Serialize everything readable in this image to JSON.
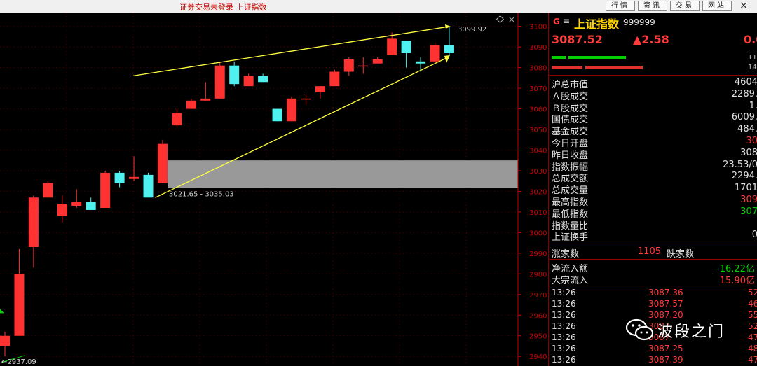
{
  "topbar": {
    "title": "证券交易未登录  上证指数",
    "buttons": [
      "行情",
      "资讯",
      "交易",
      "网站"
    ],
    "close": "×"
  },
  "chart": {
    "y_axis_labels": [
      "3100",
      "3090",
      "3080",
      "3070",
      "3060",
      "3050",
      "3040",
      "3030",
      "3020",
      "3010",
      "3000",
      "2990",
      "2980",
      "2970",
      "2960",
      "2950",
      "2940"
    ],
    "high_label": "3099.92",
    "zone_label": "3021.65 - 3035.03",
    "low_label": "←2937.09",
    "colors": {
      "up": "#ff3232",
      "down": "#4ff0f0",
      "trend": "#ffff40",
      "zone": "#999999",
      "axis": "#c80000"
    }
  },
  "chart_data": {
    "type": "candlestick",
    "ylim": [
      2936,
      3106
    ],
    "support_zone": [
      3021.65,
      3035.03
    ],
    "high": 3099.92,
    "low": 2937.09,
    "candles": [
      {
        "o": 2945,
        "c": 2950,
        "h": 2952,
        "l": 2940
      },
      {
        "o": 2950,
        "c": 2980,
        "h": 2992,
        "l": 2950
      },
      {
        "o": 2993,
        "c": 3017,
        "h": 3018,
        "l": 2983
      },
      {
        "o": 3017,
        "c": 3024,
        "h": 3025,
        "l": 3017
      },
      {
        "o": 3008,
        "c": 3014,
        "h": 3018,
        "l": 3005
      },
      {
        "o": 3013,
        "c": 3015,
        "h": 3021,
        "l": 3012
      },
      {
        "o": 3015,
        "c": 3011,
        "h": 3017,
        "l": 3011
      },
      {
        "o": 3012,
        "c": 3029,
        "h": 3030,
        "l": 3012
      },
      {
        "o": 3029,
        "c": 3024,
        "h": 3030,
        "l": 3022
      },
      {
        "o": 3026,
        "c": 3027,
        "h": 3037,
        "l": 3025
      },
      {
        "o": 3028,
        "c": 3017,
        "h": 3029,
        "l": 3017
      },
      {
        "o": 3024,
        "c": 3043,
        "h": 3045,
        "l": 3024
      },
      {
        "o": 3052,
        "c": 3058,
        "h": 3060,
        "l": 3051
      },
      {
        "o": 3060,
        "c": 3064,
        "h": 3065,
        "l": 3060
      },
      {
        "o": 3064,
        "c": 3065,
        "h": 3073,
        "l": 3064
      },
      {
        "o": 3065,
        "c": 3081,
        "h": 3083,
        "l": 3065
      },
      {
        "o": 3081,
        "c": 3072,
        "h": 3083,
        "l": 3071
      },
      {
        "o": 3071,
        "c": 3076,
        "h": 3077,
        "l": 3071
      },
      {
        "o": 3076,
        "c": 3073,
        "h": 3077,
        "l": 3073
      },
      {
        "o": 3060,
        "c": 3054,
        "h": 3060,
        "l": 3054
      },
      {
        "o": 3054,
        "c": 3065,
        "h": 3066,
        "l": 3054
      },
      {
        "o": 3065,
        "c": 3065,
        "h": 3067,
        "l": 3062
      },
      {
        "o": 3068,
        "c": 3071,
        "h": 3071,
        "l": 3065
      },
      {
        "o": 3071,
        "c": 3078,
        "h": 3079,
        "l": 3071
      },
      {
        "o": 3078,
        "c": 3084,
        "h": 3085,
        "l": 3076
      },
      {
        "o": 3081,
        "c": 3081,
        "h": 3085,
        "l": 3077
      },
      {
        "o": 3082,
        "c": 3084,
        "h": 3085,
        "l": 3082
      },
      {
        "o": 3086,
        "c": 3094,
        "h": 3097,
        "l": 3086
      },
      {
        "o": 3093,
        "c": 3087,
        "h": 3093,
        "l": 3080
      },
      {
        "o": 3083,
        "c": 3082,
        "h": 3085,
        "l": 3078
      },
      {
        "o": 3083,
        "c": 3091,
        "h": 3092,
        "l": 3082
      },
      {
        "o": 3091,
        "c": 3087,
        "h": 3100,
        "l": 3086
      }
    ]
  },
  "panel": {
    "prefix": "G",
    "menu": "≡",
    "name": "上证指数",
    "code": "999999",
    "price": "3087.52",
    "change": "▲2.58",
    "pct": "0.0",
    "bar_n1": "11",
    "bar_n2": "14",
    "rows": [
      {
        "k": "沪总市值",
        "v": "4604",
        "c": "wht"
      },
      {
        "k": "Ａ股成交",
        "v": "2289.",
        "c": "wht"
      },
      {
        "k": "Ｂ股成交",
        "v": "1.",
        "c": "wht"
      },
      {
        "k": "国债成交",
        "v": "6009.",
        "c": "wht"
      },
      {
        "k": "基金成交",
        "v": "484.",
        "c": "wht"
      },
      {
        "k": "今日开盘",
        "v": "30",
        "c": "red"
      },
      {
        "k": "昨日收盘",
        "v": "308",
        "c": "wht"
      },
      {
        "k": "指数振幅",
        "v": "23.53/0",
        "c": "wht"
      },
      {
        "k": "总成交额",
        "v": "2294.",
        "c": "wht"
      },
      {
        "k": "总成交量",
        "v": "1701",
        "c": "wht"
      },
      {
        "k": "最高指数",
        "v": "309",
        "c": "red"
      },
      {
        "k": "最低指数",
        "v": "307",
        "c": "grn"
      },
      {
        "k": "指数量比",
        "v": "",
        "c": "wht"
      },
      {
        "k": "上证换手",
        "v": "0",
        "c": "wht"
      }
    ],
    "rise_label": "涨家数",
    "rise_val": "1105",
    "fall_label": "跌家数",
    "flows": [
      {
        "k": "净流入额",
        "v": "-16.22亿",
        "c": "grn"
      },
      {
        "k": "大宗流入",
        "v": "15.90亿",
        "c": "red"
      }
    ],
    "ticks": [
      {
        "t": "13:26",
        "p": "3087.36",
        "n": "52"
      },
      {
        "t": "13:26",
        "p": "3087.57",
        "n": "46"
      },
      {
        "t": "13:26",
        "p": "3087.20",
        "n": "55"
      },
      {
        "t": "13:26",
        "p": "3087.",
        "n": "52"
      },
      {
        "t": "13:26",
        "p": "3087.",
        "n": "47"
      },
      {
        "t": "13:26",
        "p": "3087.25",
        "n": "48"
      },
      {
        "t": "13:26",
        "p": "3087.39",
        "n": "47"
      }
    ]
  },
  "watermark": {
    "text": "波段之门"
  }
}
